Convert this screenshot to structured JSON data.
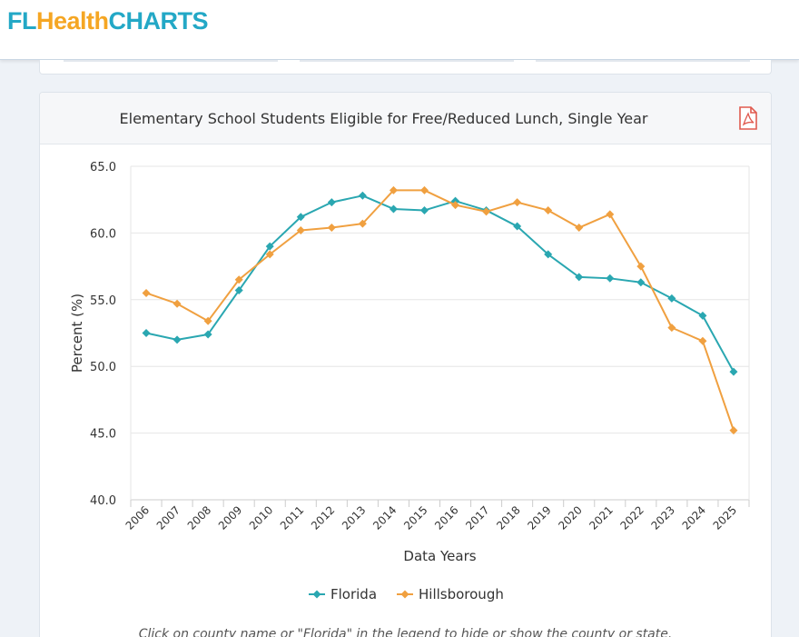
{
  "brand": {
    "part1": "FL",
    "part2": "Health",
    "part3": "CHARTS"
  },
  "card": {
    "title": "Elementary School Students Eligible for Free/Reduced Lunch, Single Year",
    "pdf_icon": "pdf-icon"
  },
  "note": "Click on county name or \"Florida\" in the legend to hide or show the county or state.",
  "colors": {
    "florida": "#2aa7b1",
    "hillsborough": "#f0a040",
    "brand_teal": "#23a8c6",
    "brand_orange": "#f5a623",
    "pdf_red": "#e05a4f"
  },
  "chart_data": {
    "type": "line",
    "title": "Elementary School Students Eligible for Free/Reduced Lunch, Single Year",
    "xlabel": "Data Years",
    "ylabel": "Percent (%)",
    "ylim": [
      40,
      65
    ],
    "yticks": [
      "40.0",
      "45.0",
      "50.0",
      "55.0",
      "60.0",
      "65.0"
    ],
    "grid": true,
    "legend_position": "bottom",
    "x": [
      "2006",
      "2007",
      "2008",
      "2009",
      "2010",
      "2011",
      "2012",
      "2013",
      "2014",
      "2015",
      "2016",
      "2017",
      "2018",
      "2019",
      "2020",
      "2021",
      "2022",
      "2023",
      "2024",
      "2025"
    ],
    "series": [
      {
        "name": "Florida",
        "color": "#2aa7b1",
        "marker": "diamond",
        "values": [
          52.5,
          52.0,
          52.4,
          55.7,
          59.0,
          61.2,
          62.3,
          62.8,
          61.8,
          61.7,
          62.4,
          61.7,
          60.5,
          58.4,
          56.7,
          56.6,
          56.3,
          55.1,
          53.8,
          49.6
        ]
      },
      {
        "name": "Hillsborough",
        "color": "#f0a040",
        "marker": "diamond",
        "values": [
          55.5,
          54.7,
          53.4,
          56.5,
          58.4,
          60.2,
          60.4,
          60.7,
          63.2,
          63.2,
          62.1,
          61.6,
          62.3,
          61.7,
          60.4,
          61.4,
          57.5,
          52.9,
          51.9,
          45.2
        ]
      }
    ]
  }
}
